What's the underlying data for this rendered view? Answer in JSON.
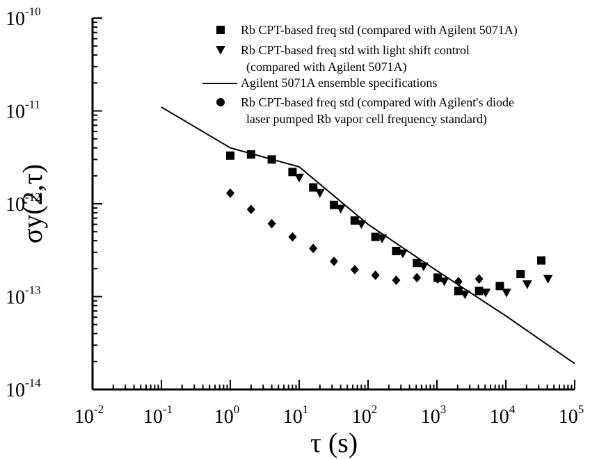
{
  "chart_data": {
    "type": "scatter",
    "xscale": "log",
    "yscale": "log",
    "xlim": [
      0.01,
      100000
    ],
    "ylim": [
      1e-14,
      1e-10
    ],
    "xlabel": "τ (s)",
    "ylabel": "σy(2,τ)",
    "x_ticks": [
      {
        "base": "10",
        "exp": "-2",
        "value": 0.01
      },
      {
        "base": "10",
        "exp": "-1",
        "value": 0.1
      },
      {
        "base": "10",
        "exp": "0",
        "value": 1
      },
      {
        "base": "10",
        "exp": "1",
        "value": 10
      },
      {
        "base": "10",
        "exp": "2",
        "value": 100
      },
      {
        "base": "10",
        "exp": "3",
        "value": 1000
      },
      {
        "base": "10",
        "exp": "4",
        "value": 10000
      },
      {
        "base": "10",
        "exp": "5",
        "value": 100000
      }
    ],
    "y_ticks": [
      {
        "base": "10",
        "exp": "-14",
        "value": 1e-14
      },
      {
        "base": "10",
        "exp": "-13",
        "value": 1e-13
      },
      {
        "base": "10",
        "exp": "-12",
        "value": 1e-12
      },
      {
        "base": "10",
        "exp": "-11",
        "value": 1e-11
      },
      {
        "base": "10",
        "exp": "-10",
        "value": 1e-10
      }
    ],
    "grid": false,
    "legend_position": "top",
    "series": [
      {
        "name": "Rb CPT-based freq std (compared with Agilent 5071A)",
        "marker": "square",
        "points": [
          [
            1,
            3.3e-12
          ],
          [
            2,
            3.4e-12
          ],
          [
            4,
            3e-12
          ],
          [
            8,
            2.2e-12
          ],
          [
            16,
            1.5e-12
          ],
          [
            32,
            9.7e-13
          ],
          [
            64,
            6.6e-13
          ],
          [
            128,
            4.4e-13
          ],
          [
            256,
            3.1e-13
          ],
          [
            512,
            2.3e-13
          ],
          [
            1024,
            1.6e-13
          ],
          [
            2048,
            1.15e-13
          ],
          [
            4096,
            1.15e-13
          ],
          [
            8192,
            1.3e-13
          ],
          [
            16384,
            1.75e-13
          ],
          [
            32768,
            2.45e-13
          ]
        ]
      },
      {
        "name": "Rb CPT-based freq std with light shift control",
        "name_line2": "(compared with Agilent 5071A)",
        "marker": "triangle-down",
        "points": [
          [
            10,
            1.9e-12
          ],
          [
            20,
            1.3e-12
          ],
          [
            40,
            8.8e-13
          ],
          [
            80,
            6e-13
          ],
          [
            160,
            4.2e-13
          ],
          [
            320,
            2.9e-13
          ],
          [
            640,
            2.1e-13
          ],
          [
            1280,
            1.45e-13
          ],
          [
            2560,
            1.05e-13
          ],
          [
            5120,
            1.1e-13
          ],
          [
            10240,
            1.1e-13
          ],
          [
            20480,
            1.35e-13
          ],
          [
            40960,
            1.55e-13
          ]
        ]
      },
      {
        "name": "Agilent 5071A ensemble specifications",
        "marker": "line",
        "points": [
          [
            0.1,
            1.1e-11
          ],
          [
            1,
            4e-12
          ],
          [
            10,
            2.5e-12
          ],
          [
            100,
            6e-13
          ],
          [
            1000,
            1.9e-13
          ],
          [
            10000,
            6.2e-14
          ],
          [
            100000,
            1.9e-14
          ]
        ]
      },
      {
        "name": "Rb CPT-based freq std (compared with Agilent's diode",
        "name_line2": "laser pumped Rb vapor cell frequency standard)",
        "marker": "diamond",
        "legend_marker": "circle",
        "points": [
          [
            1,
            1.3e-12
          ],
          [
            2,
            8.7e-13
          ],
          [
            4,
            6.1e-13
          ],
          [
            8,
            4.4e-13
          ],
          [
            16,
            3.3e-13
          ],
          [
            32,
            2.4e-13
          ],
          [
            64,
            1.95e-13
          ],
          [
            128,
            1.7e-13
          ],
          [
            256,
            1.5e-13
          ],
          [
            512,
            1.6e-13
          ],
          [
            1024,
            1.55e-13
          ],
          [
            2048,
            1.45e-13
          ],
          [
            4096,
            1.55e-13
          ]
        ]
      }
    ]
  }
}
